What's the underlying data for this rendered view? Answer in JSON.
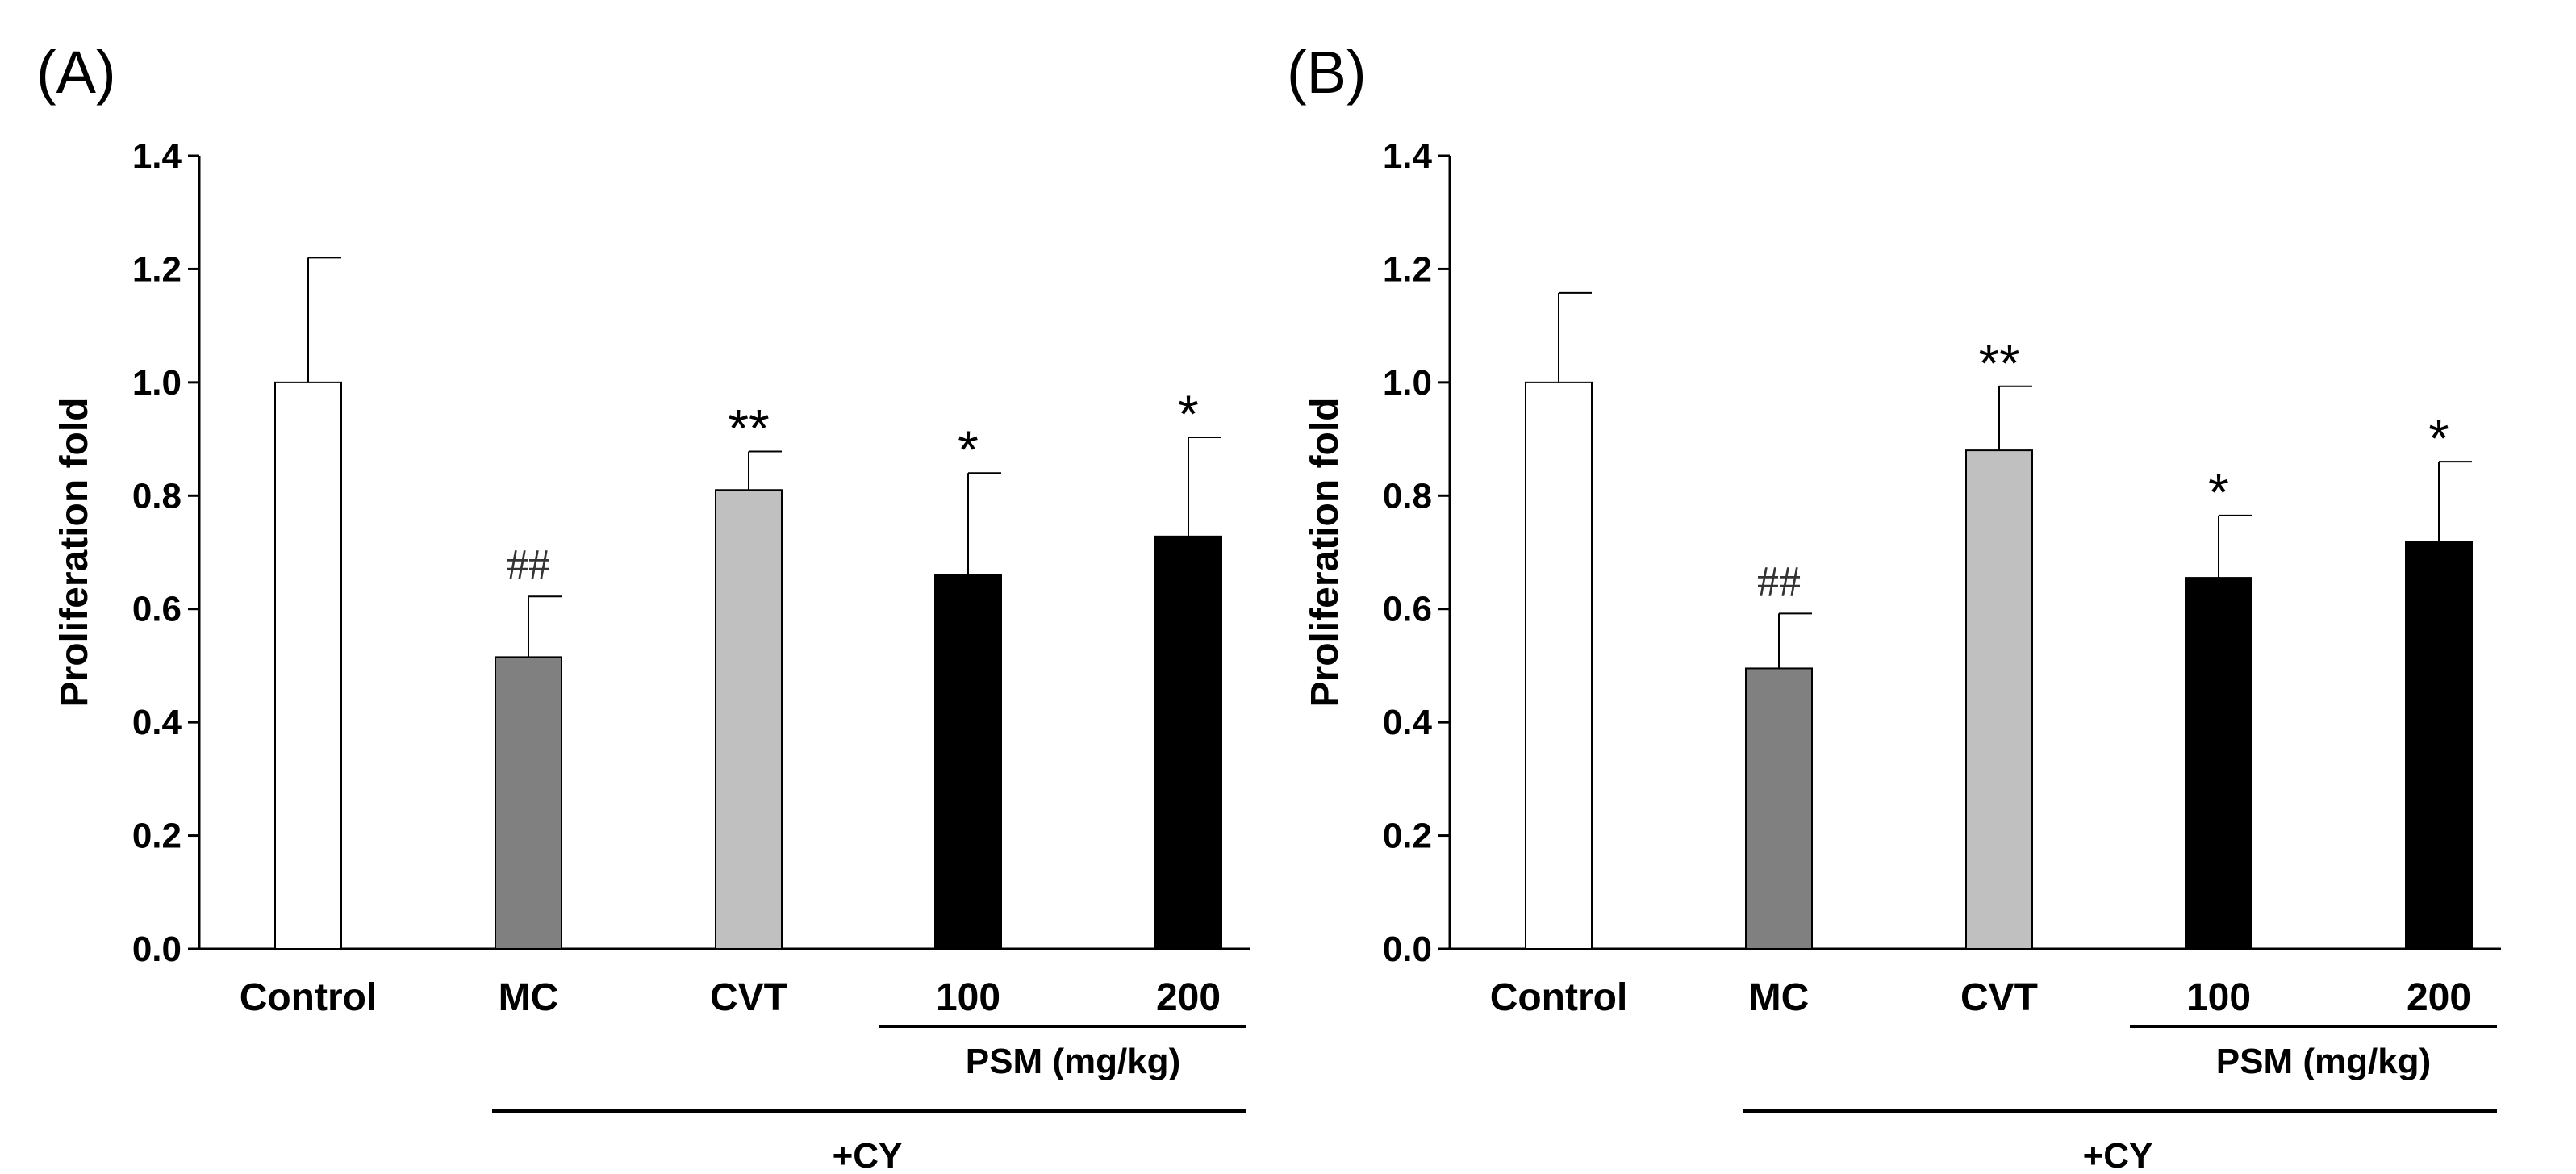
{
  "chart_data": [
    {
      "type": "bar",
      "panel_label": "(A)",
      "ylabel": "Proliferation fold",
      "xlabel": "",
      "ylim": [
        0,
        1.4
      ],
      "yticks": [
        "0.0",
        "0.2",
        "0.4",
        "0.6",
        "0.8",
        "1.0",
        "1.2",
        "1.4"
      ],
      "categories": [
        "Control",
        "MC",
        "CVT",
        "100",
        "200"
      ],
      "values": [
        1.0,
        0.515,
        0.81,
        0.66,
        0.728
      ],
      "errors": [
        0.22,
        0.107,
        0.068,
        0.18,
        0.175
      ],
      "significance": [
        "",
        "##",
        "**",
        "*",
        "*"
      ],
      "colors": [
        "#ffffff",
        "#808080",
        "#c0c0c0",
        "#000000",
        "#000000"
      ],
      "groups": {
        "psm_label": "PSM (mg/kg)",
        "cy_label": "+CY"
      }
    },
    {
      "type": "bar",
      "panel_label": "(B)",
      "ylabel": "Proliferation fold",
      "xlabel": "",
      "ylim": [
        0,
        1.4
      ],
      "yticks": [
        "0.0",
        "0.2",
        "0.4",
        "0.6",
        "0.8",
        "1.0",
        "1.2",
        "1.4"
      ],
      "categories": [
        "Control",
        "MC",
        "CVT",
        "100",
        "200"
      ],
      "values": [
        1.0,
        0.495,
        0.88,
        0.655,
        0.718
      ],
      "errors": [
        0.158,
        0.097,
        0.113,
        0.11,
        0.142
      ],
      "significance": [
        "",
        "##",
        "**",
        "*",
        "*"
      ],
      "colors": [
        "#ffffff",
        "#808080",
        "#c0c0c0",
        "#000000",
        "#000000"
      ],
      "groups": {
        "psm_label": "PSM (mg/kg)",
        "cy_label": "+CY"
      }
    }
  ]
}
